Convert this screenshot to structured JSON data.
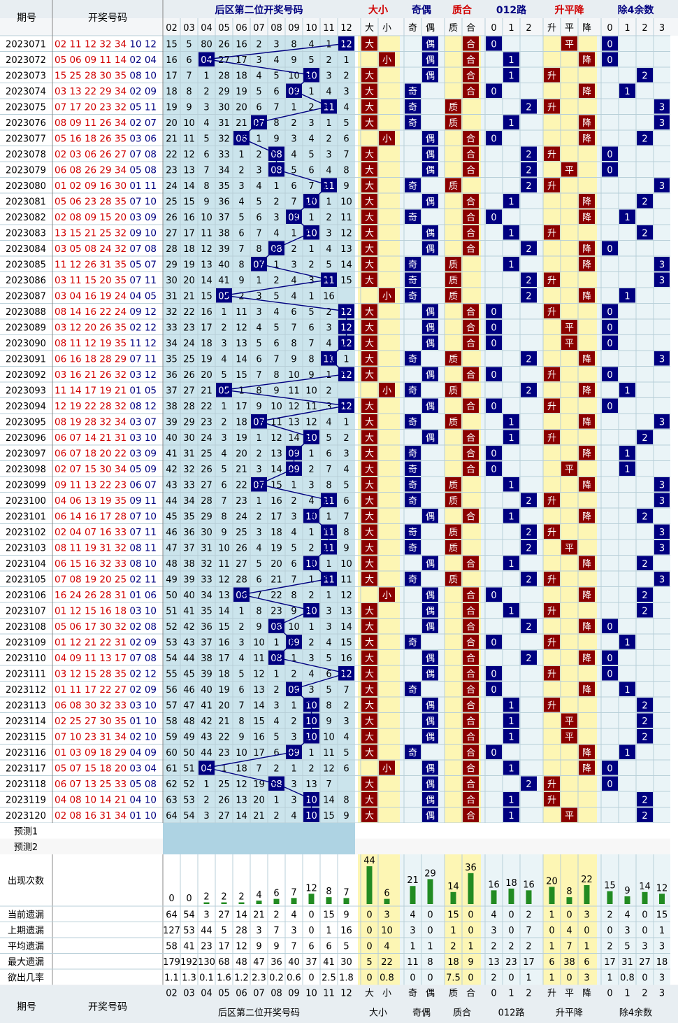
{
  "header": {
    "period": "期号",
    "draw_numbers": "开奖号码",
    "groups": [
      "后区第二位开奖号码",
      "大小",
      "奇偶",
      "质合",
      "012路",
      "升平降",
      "除4余数"
    ],
    "cols": [
      "02",
      "03",
      "04",
      "05",
      "06",
      "07",
      "08",
      "09",
      "10",
      "11",
      "12",
      "大",
      "小",
      "奇",
      "偶",
      "质",
      "合",
      "0",
      "1",
      "2",
      "升",
      "平",
      "降",
      "0",
      "1",
      "2",
      "3"
    ]
  },
  "footer_rows": {
    "predict1": "预测1",
    "predict2": "预测2",
    "count": "出现次数",
    "current_miss": "当前遗漏",
    "prev_miss": "上期遗漏",
    "avg_miss": "平均遗漏",
    "max_miss": "最大遗漏",
    "prob": "欲出几率"
  },
  "colors": {
    "blue": "#000080",
    "red": "#8b0000",
    "redtext": "#d00000",
    "green": "#228b22",
    "yellow": "#fdf6b4",
    "cyan": "#cbe4ec",
    "grid": "#b8cfd8"
  },
  "chart_data": {
    "type": "table",
    "title": "后区第二位开奖号码",
    "rows": [
      {
        "p": "2023071",
        "n": "02 11 12 32 34 10 12",
        "v": 12,
        "m": [
          15,
          5,
          80,
          26,
          16,
          2,
          3,
          8,
          4,
          1
        ]
      },
      {
        "p": "2023072",
        "n": "05 06 09 11 14 02 04",
        "v": 4,
        "m": [
          16,
          6,
          27,
          17,
          3,
          4,
          9,
          5,
          2,
          1
        ]
      },
      {
        "p": "2023073",
        "n": "15 25 28 30 35 08 10",
        "v": 10,
        "m": [
          17,
          7,
          1,
          28,
          18,
          4,
          5,
          10,
          3,
          2
        ]
      },
      {
        "p": "2023074",
        "n": "03 13 22 29 34 02 09",
        "v": 9,
        "m": [
          18,
          8,
          2,
          29,
          19,
          5,
          6,
          1,
          4,
          3
        ]
      },
      {
        "p": "2023075",
        "n": "07 17 20 23 32 05 11",
        "v": 11,
        "m": [
          19,
          9,
          3,
          30,
          20,
          6,
          7,
          1,
          2,
          4
        ]
      },
      {
        "p": "2023076",
        "n": "08 09 11 26 34 02 07",
        "v": 7,
        "m": [
          20,
          10,
          4,
          31,
          21,
          8,
          2,
          3,
          1,
          5
        ]
      },
      {
        "p": "2023077",
        "n": "05 16 18 26 35 03 06",
        "v": 6,
        "m": [
          21,
          11,
          5,
          32,
          1,
          9,
          3,
          4,
          2,
          6
        ]
      },
      {
        "p": "2023078",
        "n": "02 03 06 26 27 07 08",
        "v": 8,
        "m": [
          22,
          12,
          6,
          33,
          1,
          2,
          4,
          5,
          3,
          7
        ]
      },
      {
        "p": "2023079",
        "n": "06 08 26 29 34 05 08",
        "v": 8,
        "m": [
          23,
          13,
          7,
          34,
          2,
          3,
          5,
          6,
          4,
          8
        ]
      },
      {
        "p": "2023080",
        "n": "01 02 09 16 30 01 11",
        "v": 11,
        "m": [
          24,
          14,
          8,
          35,
          3,
          4,
          1,
          6,
          7,
          9
        ]
      },
      {
        "p": "2023081",
        "n": "05 06 23 28 35 07 10",
        "v": 10,
        "m": [
          25,
          15,
          9,
          36,
          4,
          5,
          2,
          7,
          1,
          10
        ]
      },
      {
        "p": "2023082",
        "n": "02 08 09 15 20 03 09",
        "v": 9,
        "m": [
          26,
          16,
          10,
          37,
          5,
          6,
          3,
          1,
          2,
          11
        ]
      },
      {
        "p": "2023083",
        "n": "13 15 21 25 32 09 10",
        "v": 10,
        "m": [
          27,
          17,
          11,
          38,
          6,
          7,
          4,
          1,
          3,
          12
        ]
      },
      {
        "p": "2023084",
        "n": "03 05 08 24 32 07 08",
        "v": 8,
        "m": [
          28,
          18,
          12,
          39,
          7,
          8,
          2,
          1,
          4,
          13
        ]
      },
      {
        "p": "2023085",
        "n": "11 12 26 31 35 05 07",
        "v": 7,
        "m": [
          29,
          19,
          13,
          40,
          8,
          1,
          3,
          2,
          5,
          14
        ]
      },
      {
        "p": "2023086",
        "n": "03 11 15 20 35 07 11",
        "v": 11,
        "m": [
          30,
          20,
          14,
          41,
          9,
          1,
          2,
          4,
          3,
          15
        ]
      },
      {
        "p": "2023087",
        "n": "03 04 16 19 24 04 05",
        "v": 5,
        "m": [
          31,
          21,
          15,
          2,
          3,
          5,
          4,
          1,
          16
        ]
      },
      {
        "p": "2023088",
        "n": "08 14 16 22 24 09 12",
        "v": 12,
        "m": [
          32,
          22,
          16,
          1,
          11,
          3,
          4,
          6,
          5,
          2
        ]
      },
      {
        "p": "2023089",
        "n": "03 12 20 26 35 02 12",
        "v": 12,
        "m": [
          33,
          23,
          17,
          2,
          12,
          4,
          5,
          7,
          6,
          3
        ]
      },
      {
        "p": "2023090",
        "n": "08 11 12 19 35 11 12",
        "v": 12,
        "m": [
          34,
          24,
          18,
          3,
          13,
          5,
          6,
          8,
          7,
          4
        ]
      },
      {
        "p": "2023091",
        "n": "06 16 18 28 29 07 11",
        "v": 11,
        "m": [
          35,
          25,
          19,
          4,
          14,
          6,
          7,
          9,
          8,
          1
        ]
      },
      {
        "p": "2023092",
        "n": "03 16 21 26 32 03 12",
        "v": 12,
        "m": [
          36,
          26,
          20,
          5,
          15,
          7,
          8,
          10,
          9,
          1
        ]
      },
      {
        "p": "2023093",
        "n": "11 14 17 19 21 01 05",
        "v": 5,
        "m": [
          37,
          27,
          21,
          1,
          8,
          9,
          11,
          10,
          2
        ]
      },
      {
        "p": "2023094",
        "n": "12 19 22 28 32 08 12",
        "v": 12,
        "m": [
          38,
          28,
          22,
          1,
          17,
          9,
          10,
          12,
          11,
          3
        ]
      },
      {
        "p": "2023095",
        "n": "08 19 28 32 34 03 07",
        "v": 7,
        "m": [
          39,
          29,
          23,
          2,
          18,
          11,
          13,
          12,
          4,
          1
        ]
      },
      {
        "p": "2023096",
        "n": "06 07 14 21 31 03 10",
        "v": 10,
        "m": [
          40,
          30,
          24,
          3,
          19,
          1,
          12,
          14,
          5,
          2
        ]
      },
      {
        "p": "2023097",
        "n": "06 07 18 20 22 03 09",
        "v": 9,
        "m": [
          41,
          31,
          25,
          4,
          20,
          2,
          13,
          1,
          6,
          3
        ]
      },
      {
        "p": "2023098",
        "n": "02 07 15 30 34 05 09",
        "v": 9,
        "m": [
          42,
          32,
          26,
          5,
          21,
          3,
          14,
          2,
          7,
          4
        ]
      },
      {
        "p": "2023099",
        "n": "09 11 13 22 23 06 07",
        "v": 7,
        "m": [
          43,
          33,
          27,
          6,
          22,
          15,
          1,
          3,
          8,
          5
        ]
      },
      {
        "p": "2023100",
        "n": "04 06 13 19 35 09 11",
        "v": 11,
        "m": [
          44,
          34,
          28,
          7,
          23,
          1,
          16,
          2,
          4,
          6
        ]
      },
      {
        "p": "2023101",
        "n": "06 14 16 17 28 07 10",
        "v": 10,
        "m": [
          45,
          35,
          29,
          8,
          24,
          2,
          17,
          3,
          1,
          7
        ]
      },
      {
        "p": "2023102",
        "n": "02 04 07 16 33 07 11",
        "v": 11,
        "m": [
          46,
          36,
          30,
          9,
          25,
          3,
          18,
          4,
          1,
          8
        ]
      },
      {
        "p": "2023103",
        "n": "08 11 19 31 32 08 11",
        "v": 11,
        "m": [
          47,
          37,
          31,
          10,
          26,
          4,
          19,
          5,
          2,
          9
        ]
      },
      {
        "p": "2023104",
        "n": "06 15 16 32 33 08 10",
        "v": 10,
        "m": [
          48,
          38,
          32,
          11,
          27,
          5,
          20,
          6,
          1,
          10
        ]
      },
      {
        "p": "2023105",
        "n": "07 08 19 20 25 02 11",
        "v": 11,
        "m": [
          49,
          39,
          33,
          12,
          28,
          6,
          21,
          7,
          1,
          11
        ]
      },
      {
        "p": "2023106",
        "n": "16 24 26 28 31 01 06",
        "v": 6,
        "m": [
          50,
          40,
          34,
          13,
          7,
          22,
          8,
          2,
          1,
          12
        ]
      },
      {
        "p": "2023107",
        "n": "01 12 15 16 18 03 10",
        "v": 10,
        "m": [
          51,
          41,
          35,
          14,
          1,
          8,
          23,
          9,
          3,
          13
        ]
      },
      {
        "p": "2023108",
        "n": "05 06 17 30 32 02 08",
        "v": 8,
        "m": [
          52,
          42,
          36,
          15,
          2,
          9,
          10,
          1,
          3,
          14
        ]
      },
      {
        "p": "2023109",
        "n": "01 12 21 22 31 02 09",
        "v": 9,
        "m": [
          53,
          43,
          37,
          16,
          3,
          10,
          1,
          2,
          4,
          15
        ]
      },
      {
        "p": "2023110",
        "n": "04 09 11 13 17 07 08",
        "v": 8,
        "m": [
          54,
          44,
          38,
          17,
          4,
          11,
          1,
          3,
          5,
          16
        ]
      },
      {
        "p": "2023111",
        "n": "03 12 15 28 35 02 12",
        "v": 12,
        "m": [
          55,
          45,
          39,
          18,
          5,
          12,
          1,
          2,
          4,
          6
        ]
      },
      {
        "p": "2023112",
        "n": "01 11 17 22 27 02 09",
        "v": 9,
        "m": [
          56,
          46,
          40,
          19,
          6,
          13,
          2,
          3,
          5,
          7
        ]
      },
      {
        "p": "2023113",
        "n": "06 08 30 32 33 03 10",
        "v": 10,
        "m": [
          57,
          47,
          41,
          20,
          7,
          14,
          3,
          1,
          8,
          2
        ]
      },
      {
        "p": "2023114",
        "n": "02 25 27 30 35 01 10",
        "v": 10,
        "m": [
          58,
          48,
          42,
          21,
          8,
          15,
          4,
          2,
          9,
          3
        ]
      },
      {
        "p": "2023115",
        "n": "07 10 23 31 34 02 10",
        "v": 10,
        "m": [
          59,
          49,
          43,
          22,
          9,
          16,
          5,
          3,
          10,
          4
        ]
      },
      {
        "p": "2023116",
        "n": "01 03 09 18 29 04 09",
        "v": 9,
        "m": [
          60,
          50,
          44,
          23,
          10,
          17,
          6,
          1,
          11,
          5
        ]
      },
      {
        "p": "2023117",
        "n": "05 07 15 18 20 03 04",
        "v": 4,
        "m": [
          61,
          51,
          1,
          18,
          7,
          2,
          1,
          2,
          12,
          6
        ]
      },
      {
        "p": "2023118",
        "n": "06 07 13 25 33 05 08",
        "v": 8,
        "m": [
          62,
          52,
          1,
          25,
          12,
          19,
          3,
          13,
          7
        ]
      },
      {
        "p": "2023119",
        "n": "04 08 10 14 21 04 10",
        "v": 10,
        "m": [
          63,
          53,
          2,
          26,
          13,
          20,
          1,
          3,
          14,
          8
        ]
      },
      {
        "p": "2023120",
        "n": "02 08 16 31 34 01 10",
        "v": 10,
        "m": [
          64,
          54,
          3,
          27,
          14,
          21,
          2,
          4,
          15,
          9
        ]
      }
    ],
    "counts": [
      0,
      0,
      2,
      2,
      2,
      4,
      6,
      7,
      12,
      8,
      7,
      44,
      6,
      21,
      29,
      14,
      36,
      16,
      18,
      16,
      20,
      8,
      22,
      15,
      9,
      14,
      12
    ],
    "stats": {
      "current_miss": [
        "64",
        "54",
        "3",
        "27",
        "14",
        "21",
        "2",
        "4",
        "0",
        "15",
        "9",
        "0",
        "3",
        "4",
        "0",
        "15",
        "0",
        "4",
        "0",
        "2",
        "1",
        "0",
        "3",
        "2",
        "4",
        "0",
        "15"
      ],
      "prev_miss": [
        "127",
        "53",
        "44",
        "5",
        "28",
        "3",
        "7",
        "3",
        "0",
        "1",
        "16",
        "0",
        "10",
        "3",
        "0",
        "1",
        "0",
        "3",
        "0",
        "7",
        "0",
        "4",
        "0",
        "0",
        "3",
        "0",
        "1"
      ],
      "avg_miss": [
        "58",
        "41",
        "23",
        "17",
        "12",
        "9",
        "9",
        "7",
        "6",
        "6",
        "5",
        "0",
        "4",
        "1",
        "1",
        "2",
        "1",
        "2",
        "2",
        "2",
        "1",
        "7",
        "1",
        "2",
        "5",
        "3",
        "3"
      ],
      "max_miss": [
        "179",
        "192",
        "130",
        "68",
        "48",
        "47",
        "36",
        "40",
        "37",
        "41",
        "30",
        "5",
        "22",
        "11",
        "8",
        "18",
        "9",
        "13",
        "23",
        "17",
        "6",
        "38",
        "6",
        "17",
        "31",
        "27",
        "18"
      ],
      "prob": [
        "1.1",
        "1.3",
        "0.1",
        "1.6",
        "1.2",
        "2.3",
        "0.2",
        "0.6",
        "0",
        "2.5",
        "1.8",
        "0",
        "0.8",
        "0",
        "0",
        "7.5",
        "0",
        "2",
        "0",
        "1",
        "1",
        "0",
        "3",
        "1",
        "0.8",
        "0",
        "3"
      ]
    }
  }
}
